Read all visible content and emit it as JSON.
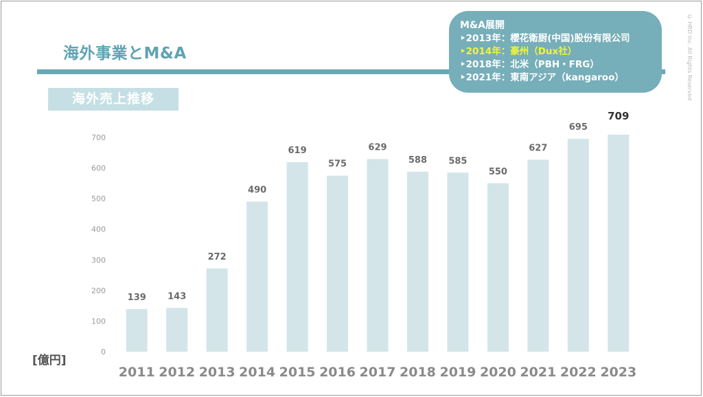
{
  "title": "海外事業とM&A",
  "subtitle": "海外売上推移",
  "unit_label": "[億円]",
  "copyright": "© HRD Inc. All Rights Reserved",
  "callout": {
    "heading": "M&A展開",
    "items": [
      {
        "text": "‣2013年：櫻花衛厨(中国)股份有限公司",
        "highlight": false
      },
      {
        "text": "‣2014年：豪州（Dux社）",
        "highlight": true
      },
      {
        "text": "‣2018年：北米（PBH・FRG）",
        "highlight": false
      },
      {
        "text": "‣2021年：東南アジア（kangaroo）",
        "highlight": false
      }
    ],
    "highlight_color": "#f2f533"
  },
  "colors": {
    "bar": "#d3e5e9",
    "accent": "#6aa8b6",
    "title": "#5fa3b3"
  },
  "chart_data": {
    "type": "bar",
    "categories": [
      "2011",
      "2012",
      "2013",
      "2014",
      "2015",
      "2016",
      "2017",
      "2018",
      "2019",
      "2020",
      "2021",
      "2022",
      "2023"
    ],
    "values": [
      139,
      143,
      272,
      490,
      619,
      575,
      629,
      588,
      585,
      550,
      627,
      695,
      709
    ],
    "ylabel": "[億円]",
    "ylim": [
      0,
      700
    ],
    "yticks": [
      0,
      100,
      200,
      300,
      400,
      500,
      600,
      700
    ],
    "grid": false,
    "legend": "none"
  }
}
